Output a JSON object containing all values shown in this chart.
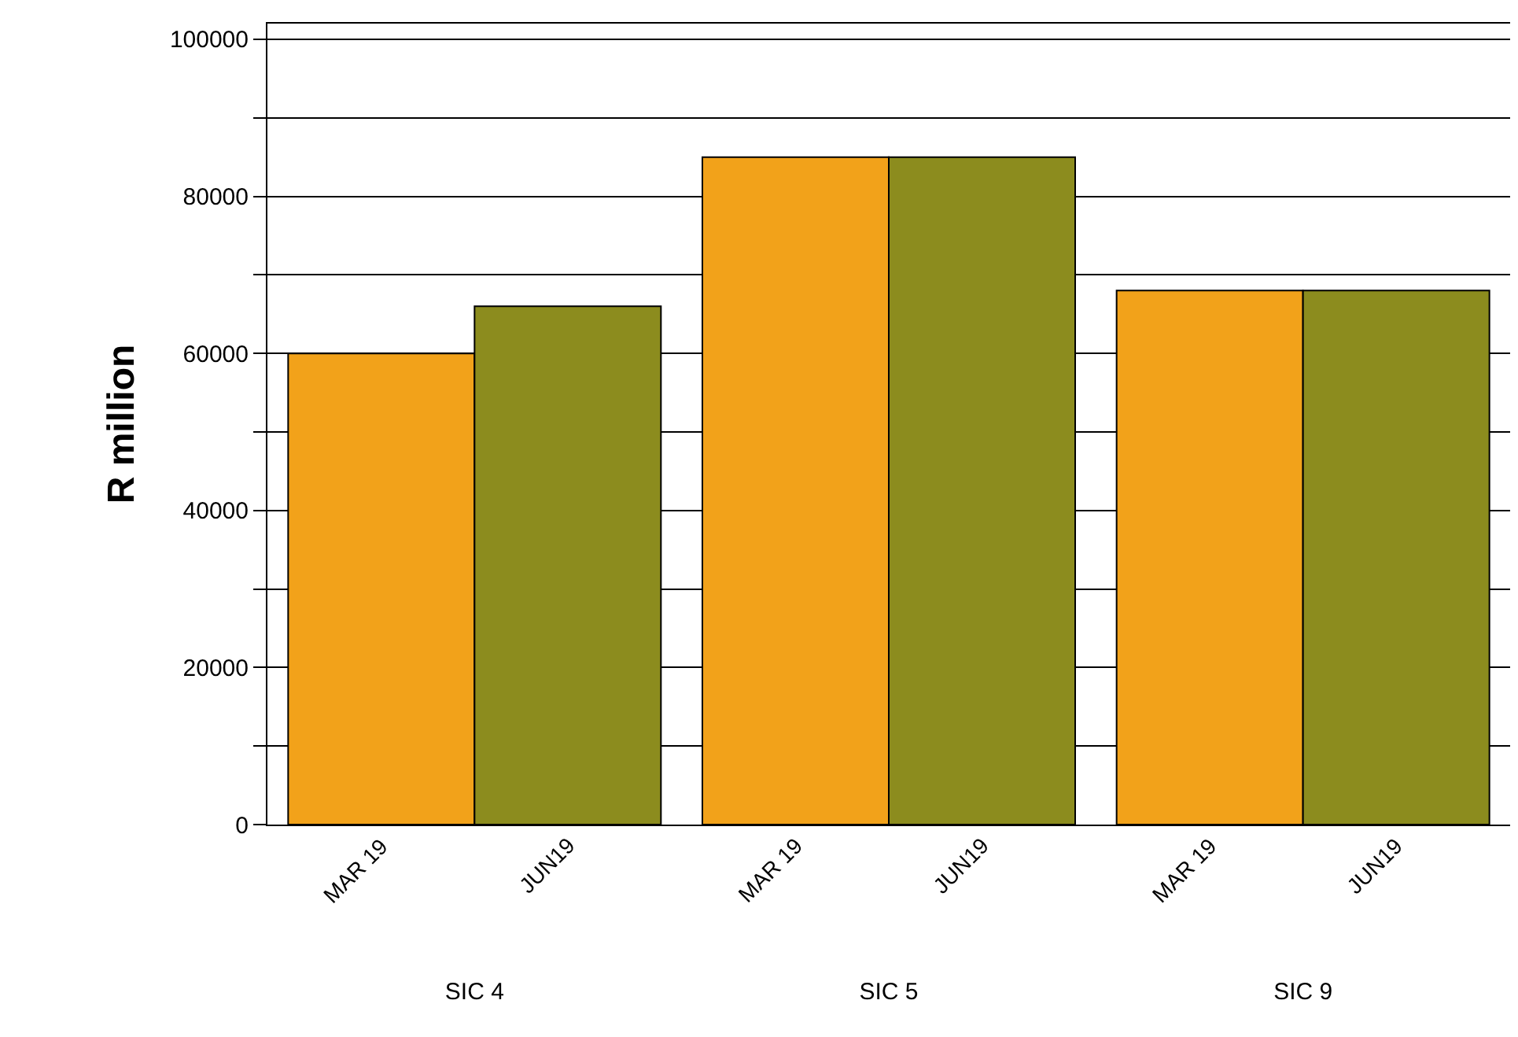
{
  "chart_data": {
    "type": "bar",
    "ylabel": "R million",
    "categories": [
      "SIC 4",
      "SIC 5",
      "SIC 9"
    ],
    "series": [
      {
        "name": "MAR 19",
        "color": "#f2a21a",
        "values": [
          60000,
          85000,
          68000
        ]
      },
      {
        "name": "JUN19",
        "color": "#8c8c1e",
        "values": [
          66000,
          85000,
          68000
        ]
      }
    ],
    "ylim": [
      0,
      102000
    ],
    "yticks": [
      0,
      {
        "value": 10000,
        "label": null
      },
      20000,
      {
        "value": 30000,
        "label": null
      },
      40000,
      {
        "value": 50000,
        "label": null
      },
      60000,
      {
        "value": 70000,
        "label": null
      },
      80000,
      {
        "value": 90000,
        "label": null
      },
      100000
    ],
    "grid": "y",
    "legend": false
  }
}
